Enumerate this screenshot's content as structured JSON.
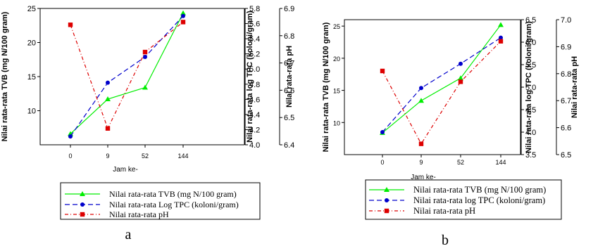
{
  "chart_data": [
    {
      "panel_label": "a",
      "type": "line",
      "categories": [
        "0",
        "9",
        "52",
        "144"
      ],
      "xlabel": "Jam ke-",
      "y_left": {
        "label": "Nilai rata-rata TVB  (mg N/100 gram)",
        "lim": [
          5,
          25
        ],
        "ticks": [
          "10",
          "15",
          "20",
          "25"
        ]
      },
      "y_mid": {
        "label": "Nilai rata-rata log TPC (koloni/gram)",
        "lim": [
          4.0,
          5.8
        ],
        "ticks": [
          "4.0",
          "4.2",
          "4.4",
          "4.6",
          "4.8",
          "5.0",
          "5.2",
          "5.4",
          "5.6",
          "5.8"
        ]
      },
      "y_right": {
        "label": "Nilai rata-rata pH",
        "lim": [
          6.4,
          6.9
        ],
        "ticks": [
          "6.4",
          "6.5",
          "6.6",
          "6.7",
          "6.8",
          "6.9"
        ]
      },
      "series": [
        {
          "name": "Nilai  rata-rata  TVB  (mg N/100 gram)",
          "axis": "y_left",
          "color": "#00ee00",
          "marker": "triangle",
          "dash": "solid",
          "values": [
            6.6,
            11.7,
            13.4,
            24.3
          ]
        },
        {
          "name": "Nilai  rata-rata  Log  TPC  (koloni/gram)",
          "axis": "y_mid",
          "color": "#0000cc",
          "marker": "circle",
          "dash": "dash",
          "values": [
            4.11,
            4.82,
            5.16,
            5.7
          ]
        },
        {
          "name": "Nilai  rata-rata  pH",
          "axis": "y_right",
          "color": "#dd0000",
          "marker": "square",
          "dash": "dashdot",
          "values": [
            6.84,
            6.46,
            6.74,
            6.85
          ]
        }
      ],
      "legend_position": "below",
      "grid": false
    },
    {
      "panel_label": "b",
      "type": "line",
      "categories": [
        "0",
        "9",
        "52",
        "144"
      ],
      "xlabel": "Jam ke-",
      "y_left": {
        "label": "Nilai rata-rata TVB (mg N/100 gram)",
        "lim": [
          5,
          26
        ],
        "ticks": [
          "10",
          "15",
          "20",
          "25"
        ]
      },
      "y_mid": {
        "label": "Nilai rata-rata log TPC (koloni/gram)",
        "lim": [
          3.5,
          6.5
        ],
        "ticks": [
          "3.5",
          "4.0",
          "4.5",
          "5.0",
          "5.5",
          "6.0",
          "6.5"
        ]
      },
      "y_right": {
        "label": "Nilai rata-rata pH",
        "lim": [
          6.5,
          7.0
        ],
        "ticks": [
          "6.5",
          "6.6",
          "6.7",
          "6.8",
          "6.9",
          "7.0"
        ]
      },
      "series": [
        {
          "name": "Nilai rata-rata TVB (mg N/100 gram)",
          "axis": "y_left",
          "color": "#00ee00",
          "marker": "triangle",
          "dash": "solid",
          "values": [
            8.4,
            13.4,
            16.9,
            25.2
          ]
        },
        {
          "name": "Nilai rata-rata log TPC (koloni/gram)",
          "axis": "y_mid",
          "color": "#0000cc",
          "marker": "circle",
          "dash": "dash",
          "values": [
            4.0,
            4.98,
            5.52,
            6.1
          ]
        },
        {
          "name": "Nilai rata-rata pH",
          "axis": "y_right",
          "color": "#dd0000",
          "marker": "square",
          "dash": "dashdot",
          "values": [
            6.81,
            6.54,
            6.77,
            6.92
          ]
        }
      ],
      "legend_position": "below",
      "grid": false
    }
  ]
}
